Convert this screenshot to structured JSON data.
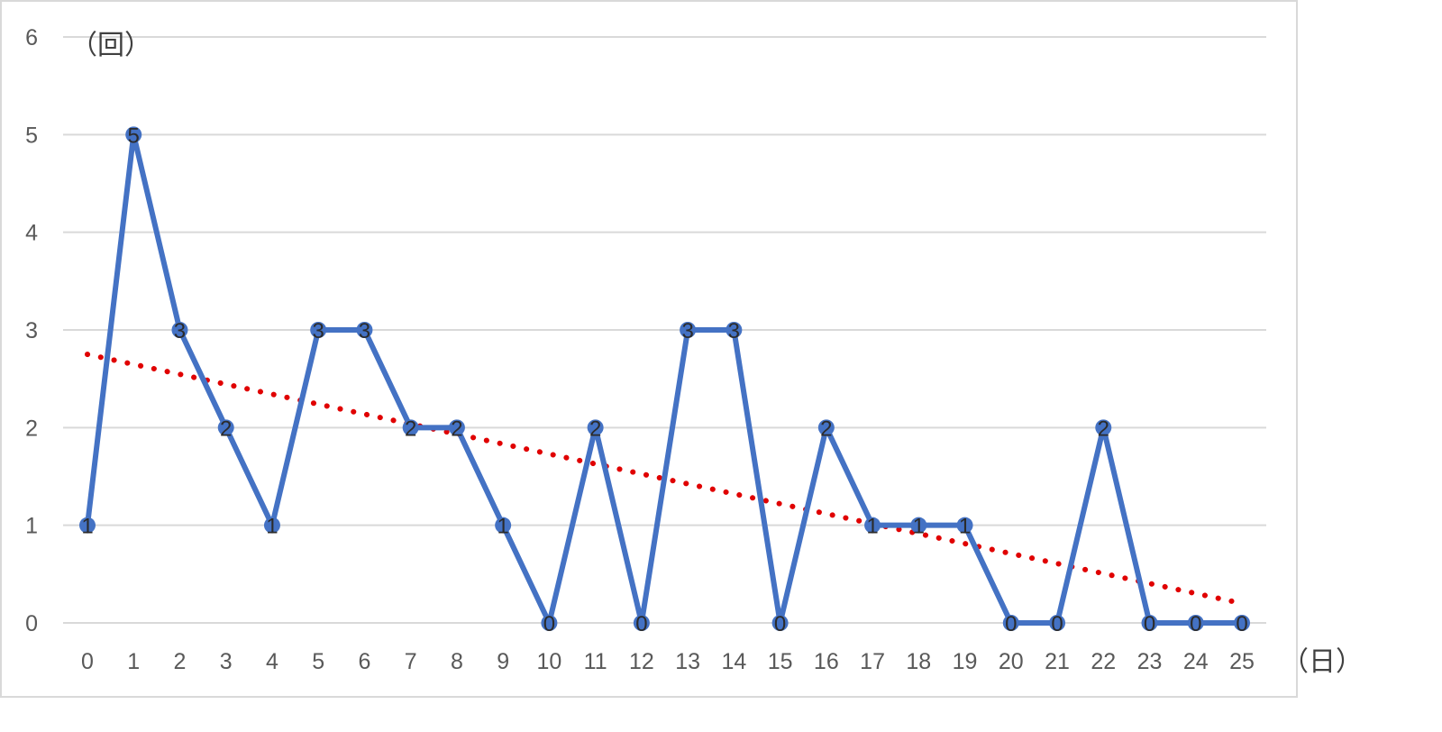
{
  "chart_data": {
    "type": "line",
    "x": [
      0,
      1,
      2,
      3,
      4,
      5,
      6,
      7,
      8,
      9,
      10,
      11,
      12,
      13,
      14,
      15,
      16,
      17,
      18,
      19,
      20,
      21,
      22,
      23,
      24,
      25
    ],
    "series": [
      {
        "values": [
          1,
          5,
          3,
          2,
          1,
          3,
          3,
          2,
          2,
          1,
          0,
          2,
          0,
          3,
          3,
          0,
          2,
          1,
          1,
          1,
          0,
          0,
          2,
          0,
          0,
          0
        ]
      }
    ],
    "trendline": {
      "type": "linear",
      "style": "dotted",
      "start": 2.75,
      "end": 0.2
    },
    "y_unit_label": "（回）",
    "x_unit_label": "（日）",
    "ylim": [
      0,
      6
    ],
    "y_ticks": [
      "0",
      "1",
      "2",
      "3",
      "4",
      "5",
      "6"
    ],
    "x_ticks": [
      "0",
      "1",
      "2",
      "3",
      "4",
      "5",
      "6",
      "7",
      "8",
      "9",
      "10",
      "11",
      "12",
      "13",
      "14",
      "15",
      "16",
      "17",
      "18",
      "19",
      "20",
      "21",
      "22",
      "23",
      "24",
      "25"
    ],
    "grid": true,
    "data_labels": true,
    "colors": {
      "line": "#4472C4",
      "trendline": "#E00000",
      "grid": "#d9d9d9"
    }
  }
}
